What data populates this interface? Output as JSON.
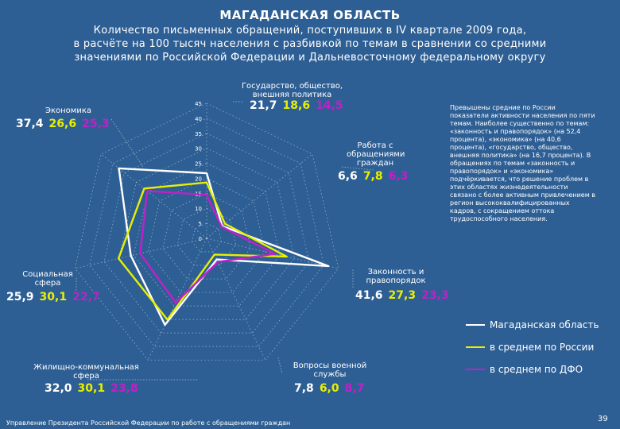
{
  "title": "МАГАДАНСКАЯ ОБЛАСТЬ",
  "subtitle_lines": [
    "Количество письменных обращений, поступивших в IV квартале 2009 года,",
    "в расчёте на 100 тысяч населения с разбивкой по темам в сравнении со средними",
    "значениями по Российской Федерации и Дальневосточному федеральному округу"
  ],
  "chart_data": {
    "type": "radar",
    "axes": [
      "Государство, общество, внешняя политика",
      "Работа с обращениями граждан",
      "Законность и правопорядок",
      "Вопросы военной службы",
      "Жилищно-коммунальная сфера",
      "Социальная сфера",
      "Экономика"
    ],
    "axis_labels": {
      "gov": "Государство, общество, внешняя политика",
      "work": "Работа с обращениями граждан",
      "law": "Законность и правопорядок",
      "military": "Вопросы военной службы",
      "housing": "Жилищно-коммунальная сфера",
      "social": "Социальная сфера",
      "economy": "Экономика"
    },
    "series": [
      {
        "name": "Магаданская область",
        "color": "#ffffff",
        "values": [
          21.7,
          6.6,
          41.6,
          7.8,
          32.0,
          25.9,
          37.4
        ]
      },
      {
        "name": "в среднем по России",
        "color": "#e8f000",
        "values": [
          18.6,
          7.8,
          27.3,
          6.0,
          30.1,
          30.1,
          26.6
        ]
      },
      {
        "name": "в среднем по ДФО",
        "color": "#c020c8",
        "values": [
          14.5,
          6.3,
          23.3,
          8.7,
          23.8,
          22.7,
          25.3
        ]
      }
    ],
    "value_labels": {
      "gov": [
        "21,7",
        "18,6",
        "14,5"
      ],
      "work": [
        "6,6",
        "7,8",
        "6,3"
      ],
      "law": [
        "41,6",
        "27,3",
        "23,3"
      ],
      "military": [
        "7,8",
        "6,0",
        "8,7"
      ],
      "housing": [
        "32,0",
        "30,1",
        "23,8"
      ],
      "social": [
        "25,9",
        "30,1",
        "22,7"
      ],
      "economy": [
        "37,4",
        "26,6",
        "25,3"
      ]
    },
    "tick_labels": [
      "45",
      "40",
      "35",
      "30",
      "25",
      "20",
      "15",
      "10",
      "5",
      "0"
    ],
    "rmax": 45
  },
  "legend": [
    {
      "label": "Магаданская область",
      "color": "#ffffff"
    },
    {
      "label": "в среднем по России",
      "color": "#e8f000"
    },
    {
      "label": "в среднем по ДФО",
      "color": "#c020c8"
    }
  ],
  "note": "Превышены средние по России показатели активности населения по пяти темам. Наиболее существенно по темам: «законность и правопорядок» (на 52,4 процента), «экономика» (на 40,6 процента), «государство, общество, внешняя политика» (на 16,7 процента). В обращениях по темам «законность и правопорядок» и «экономика» подчёркивается, что решение проблем в этих областях жизнедеятельности связано с более активным привлечением в регион высококвалифицированных кадров, с сокращением оттока трудоспособного населения.",
  "footer": "Управление Президента Российской Федерации по работе с обращениями граждан",
  "page_number": "39"
}
